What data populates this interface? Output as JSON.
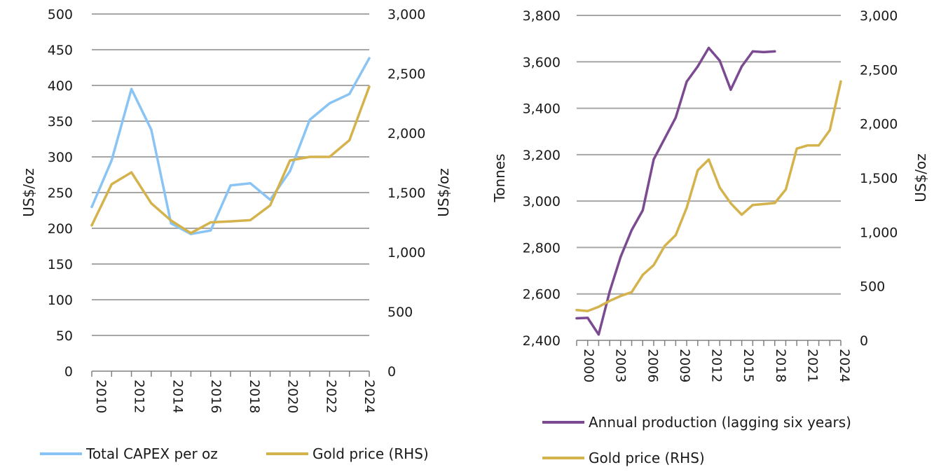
{
  "chart_data": [
    {
      "type": "line",
      "x": [
        2010,
        2011,
        2012,
        2013,
        2014,
        2015,
        2016,
        2017,
        2018,
        2019,
        2020,
        2021,
        2022,
        2023,
        2024
      ],
      "x_tick_labels": [
        "2010",
        "2012",
        "2014",
        "2016",
        "2018",
        "2020",
        "2022",
        "2024"
      ],
      "ylabel": "US$/oz",
      "ylim": [
        0,
        500
      ],
      "y_ticks": [
        "0",
        "50",
        "100",
        "150",
        "200",
        "250",
        "300",
        "350",
        "400",
        "450",
        "500"
      ],
      "y2label": "US$/oz",
      "y2lim": [
        0,
        3000
      ],
      "y2_ticks": [
        "0",
        "500",
        "1,000",
        "1,500",
        "2,000",
        "2,500",
        "3,000"
      ],
      "grid": true,
      "legend_position": "bottom",
      "series": [
        {
          "name": "Total CAPEX per oz",
          "axis": "left",
          "color": "#89c4f4",
          "values": [
            230,
            295,
            395,
            338,
            207,
            192,
            197,
            260,
            263,
            240,
            280,
            352,
            375,
            388,
            438
          ]
        },
        {
          "name": "Gold price (RHS)",
          "axis": "right",
          "color": "#d4b24c",
          "values": [
            1225,
            1570,
            1670,
            1410,
            1265,
            1160,
            1250,
            1258,
            1268,
            1393,
            1770,
            1800,
            1800,
            1940,
            2390
          ]
        }
      ]
    },
    {
      "type": "line",
      "x": [
        2000,
        2001,
        2002,
        2003,
        2004,
        2005,
        2006,
        2007,
        2008,
        2009,
        2010,
        2011,
        2012,
        2013,
        2014,
        2015,
        2016,
        2017,
        2018,
        2019,
        2020,
        2021,
        2022,
        2023,
        2024
      ],
      "x_tick_labels": [
        "2000",
        "2003",
        "2006",
        "2009",
        "2012",
        "2015",
        "2018",
        "2021",
        "2024"
      ],
      "ylabel": "Tonnes",
      "ylim": [
        2400,
        3800
      ],
      "y_ticks": [
        "2,400",
        "2,600",
        "2,800",
        "3,000",
        "3,200",
        "3,400",
        "3,600",
        "3,800"
      ],
      "y2label": "US$/oz",
      "y2lim": [
        0,
        3000
      ],
      "y2_ticks": [
        "0",
        "500",
        "1,000",
        "1,500",
        "2,000",
        "2,500",
        "3,000"
      ],
      "grid": true,
      "legend_position": "bottom",
      "series": [
        {
          "name": "Annual production (lagging six years)",
          "axis": "left",
          "color": "#7b4a91",
          "values": [
            2495,
            2497,
            2425,
            2610,
            2760,
            2875,
            2960,
            3180,
            3270,
            3360,
            3515,
            3580,
            3660,
            3605,
            3480,
            3580,
            3645,
            3642,
            3645,
            null,
            null,
            null,
            null,
            null,
            null
          ]
        },
        {
          "name": "Gold price (RHS)",
          "axis": "right",
          "color": "#d4b24c",
          "values": [
            279,
            271,
            310,
            364,
            410,
            445,
            604,
            695,
            872,
            972,
            1225,
            1570,
            1670,
            1410,
            1265,
            1160,
            1250,
            1258,
            1268,
            1393,
            1770,
            1800,
            1800,
            1940,
            2390
          ]
        }
      ]
    }
  ]
}
